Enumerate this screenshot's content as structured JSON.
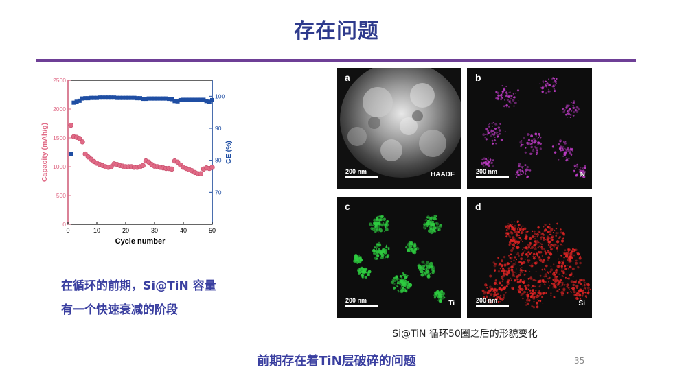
{
  "slide": {
    "title": "存在问题",
    "caption_left_line1": "在循环的前期，Si@TiN 容量",
    "caption_left_line2": "有一个快速衰减的阶段",
    "image_caption": "Si@TiN 循环50圈之后的形貌变化",
    "bottom_note": "前期存在着TiN层破碎的问题",
    "page_number": "35"
  },
  "panels": {
    "a": {
      "letter": "a",
      "scale": "200 nm",
      "tag": "HAADF"
    },
    "b": {
      "letter": "b",
      "scale": "200 nm",
      "tag": "N"
    },
    "c": {
      "letter": "c",
      "scale": "200 nm",
      "tag": "Ti"
    },
    "d": {
      "letter": "d",
      "scale": "200 nm",
      "tag": "Si"
    }
  },
  "colors": {
    "title": "#2e3a8c",
    "rule": "#6e3f96",
    "capacity": "#e06a86",
    "ce": "#1f4ea3",
    "caption": "#3a3fa0",
    "N_map": "#c03cc8",
    "Ti_map": "#2ecc40",
    "Si_map": "#e52525"
  },
  "chart_data": {
    "type": "scatter",
    "xlabel": "Cycle number",
    "ylabel_left": "Capacity (mAh/g)",
    "ylabel_right": "CE (%)",
    "xlim": [
      0,
      50
    ],
    "ylim_left": [
      0,
      2500
    ],
    "ylim_right": [
      60,
      105
    ],
    "x_ticks": [
      0,
      10,
      20,
      30,
      40,
      50
    ],
    "y_left_ticks": [
      0,
      500,
      1000,
      1500,
      2000,
      2500
    ],
    "y_right_ticks": [
      70,
      80,
      90,
      100
    ],
    "grid": false,
    "series": [
      {
        "axis": "left",
        "marker": "circle",
        "x": [
          1,
          2,
          3,
          4,
          5,
          6,
          7,
          8,
          9,
          10,
          11,
          12,
          13,
          14,
          15,
          16,
          17,
          18,
          19,
          20,
          21,
          22,
          23,
          24,
          25,
          26,
          27,
          28,
          29,
          30,
          31,
          32,
          33,
          34,
          35,
          36,
          37,
          38,
          39,
          40,
          41,
          42,
          43,
          44,
          45,
          46,
          47,
          48,
          49,
          50
        ],
        "values": [
          1720,
          1520,
          1510,
          1490,
          1430,
          1220,
          1170,
          1130,
          1090,
          1060,
          1040,
          1020,
          1000,
          990,
          1000,
          1050,
          1040,
          1020,
          1010,
          1000,
          1000,
          1000,
          990,
          990,
          1000,
          1020,
          1100,
          1080,
          1040,
          1010,
          1000,
          990,
          980,
          970,
          970,
          960,
          1100,
          1080,
          1030,
          990,
          970,
          950,
          930,
          900,
          880,
          880,
          960,
          980,
          970,
          990
        ]
      },
      {
        "axis": "right",
        "marker": "square",
        "x": [
          1,
          2,
          3,
          4,
          5,
          6,
          7,
          8,
          9,
          10,
          11,
          12,
          13,
          14,
          15,
          16,
          17,
          18,
          19,
          20,
          21,
          22,
          23,
          24,
          25,
          26,
          27,
          28,
          29,
          30,
          31,
          32,
          33,
          34,
          35,
          36,
          37,
          38,
          39,
          40,
          41,
          42,
          43,
          44,
          45,
          46,
          47,
          48,
          49,
          50
        ],
        "values": [
          82,
          98.0,
          98.3,
          98.6,
          99.3,
          99.4,
          99.4,
          99.5,
          99.5,
          99.5,
          99.6,
          99.6,
          99.6,
          99.6,
          99.6,
          99.6,
          99.5,
          99.5,
          99.5,
          99.5,
          99.5,
          99.5,
          99.5,
          99.4,
          99.4,
          99.2,
          99.2,
          99.3,
          99.3,
          99.3,
          99.3,
          99.3,
          99.3,
          99.3,
          99.2,
          99.1,
          98.5,
          98.4,
          98.8,
          98.9,
          98.9,
          98.9,
          98.9,
          98.9,
          98.9,
          98.9,
          98.9,
          98.5,
          98.3,
          98.8
        ]
      }
    ]
  }
}
